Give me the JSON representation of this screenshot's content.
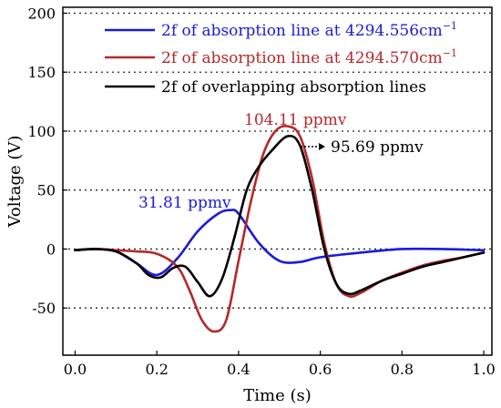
{
  "chart_data": {
    "type": "line",
    "xlabel": "Time (s)",
    "ylabel": "Voltage (V)",
    "xlim": [
      -0.03,
      1.02
    ],
    "ylim": [
      -90,
      205
    ],
    "xticks": [
      0.0,
      0.2,
      0.4,
      0.6,
      0.8,
      1.0
    ],
    "xtick_labels": [
      "0.0",
      "0.2",
      "0.4",
      "0.6",
      "0.8",
      "1.0"
    ],
    "yticks": [
      -50,
      0,
      50,
      100,
      150,
      200
    ],
    "ytick_labels": [
      "-50",
      "0",
      "50",
      "100",
      "150",
      "200"
    ],
    "grid": "horizontal dotted",
    "legend_position": "top",
    "series": [
      {
        "name": "2f of absorption line at 4294.556cm",
        "name_superscript": "−1",
        "color": "#1a1adb",
        "x": [
          0.0,
          0.05,
          0.1,
          0.15,
          0.2,
          0.25,
          0.3,
          0.35,
          0.38,
          0.4,
          0.45,
          0.5,
          0.55,
          0.6,
          0.7,
          0.8,
          0.9,
          1.0
        ],
        "y": [
          -1,
          0,
          -2,
          -12,
          -22,
          -8,
          15,
          30,
          33,
          30,
          5,
          -10,
          -11,
          -7,
          -3,
          0,
          0,
          -1
        ]
      },
      {
        "name": "2f of absorption line at 4294.570cm",
        "name_superscript": "−1",
        "color": "#b5282a",
        "x": [
          0.0,
          0.05,
          0.1,
          0.15,
          0.2,
          0.25,
          0.28,
          0.31,
          0.34,
          0.37,
          0.4,
          0.43,
          0.46,
          0.49,
          0.52,
          0.55,
          0.58,
          0.61,
          0.64,
          0.67,
          0.7,
          0.75,
          0.8,
          0.85,
          0.9,
          0.95,
          1.0
        ],
        "y": [
          -1,
          0,
          -1,
          -2,
          -4,
          -15,
          -35,
          -60,
          -70,
          -60,
          -10,
          40,
          80,
          100,
          104.11,
          96,
          60,
          5,
          -30,
          -40,
          -37,
          -27,
          -20,
          -14,
          -10,
          -7,
          -3
        ]
      },
      {
        "name": "2f of overlapping absorption lines",
        "color": "#000000",
        "x": [
          0.0,
          0.05,
          0.1,
          0.15,
          0.18,
          0.21,
          0.24,
          0.27,
          0.3,
          0.33,
          0.36,
          0.39,
          0.42,
          0.45,
          0.48,
          0.52,
          0.55,
          0.58,
          0.61,
          0.64,
          0.67,
          0.7,
          0.75,
          0.8,
          0.85,
          0.9,
          0.95,
          1.0
        ],
        "y": [
          -1,
          0,
          -2,
          -12,
          -22,
          -24,
          -16,
          -15,
          -28,
          -40,
          -25,
          10,
          50,
          70,
          83,
          95.69,
          88,
          50,
          0,
          -30,
          -38,
          -35,
          -27,
          -21,
          -15,
          -11,
          -7,
          -3
        ]
      }
    ],
    "annotations": [
      {
        "text": "31.81 ppmv",
        "color": "#1a1adb"
      },
      {
        "text": "104.11 ppmv",
        "color": "#b5282a"
      },
      {
        "text": "95.69 ppmv",
        "color": "#000000"
      }
    ]
  }
}
